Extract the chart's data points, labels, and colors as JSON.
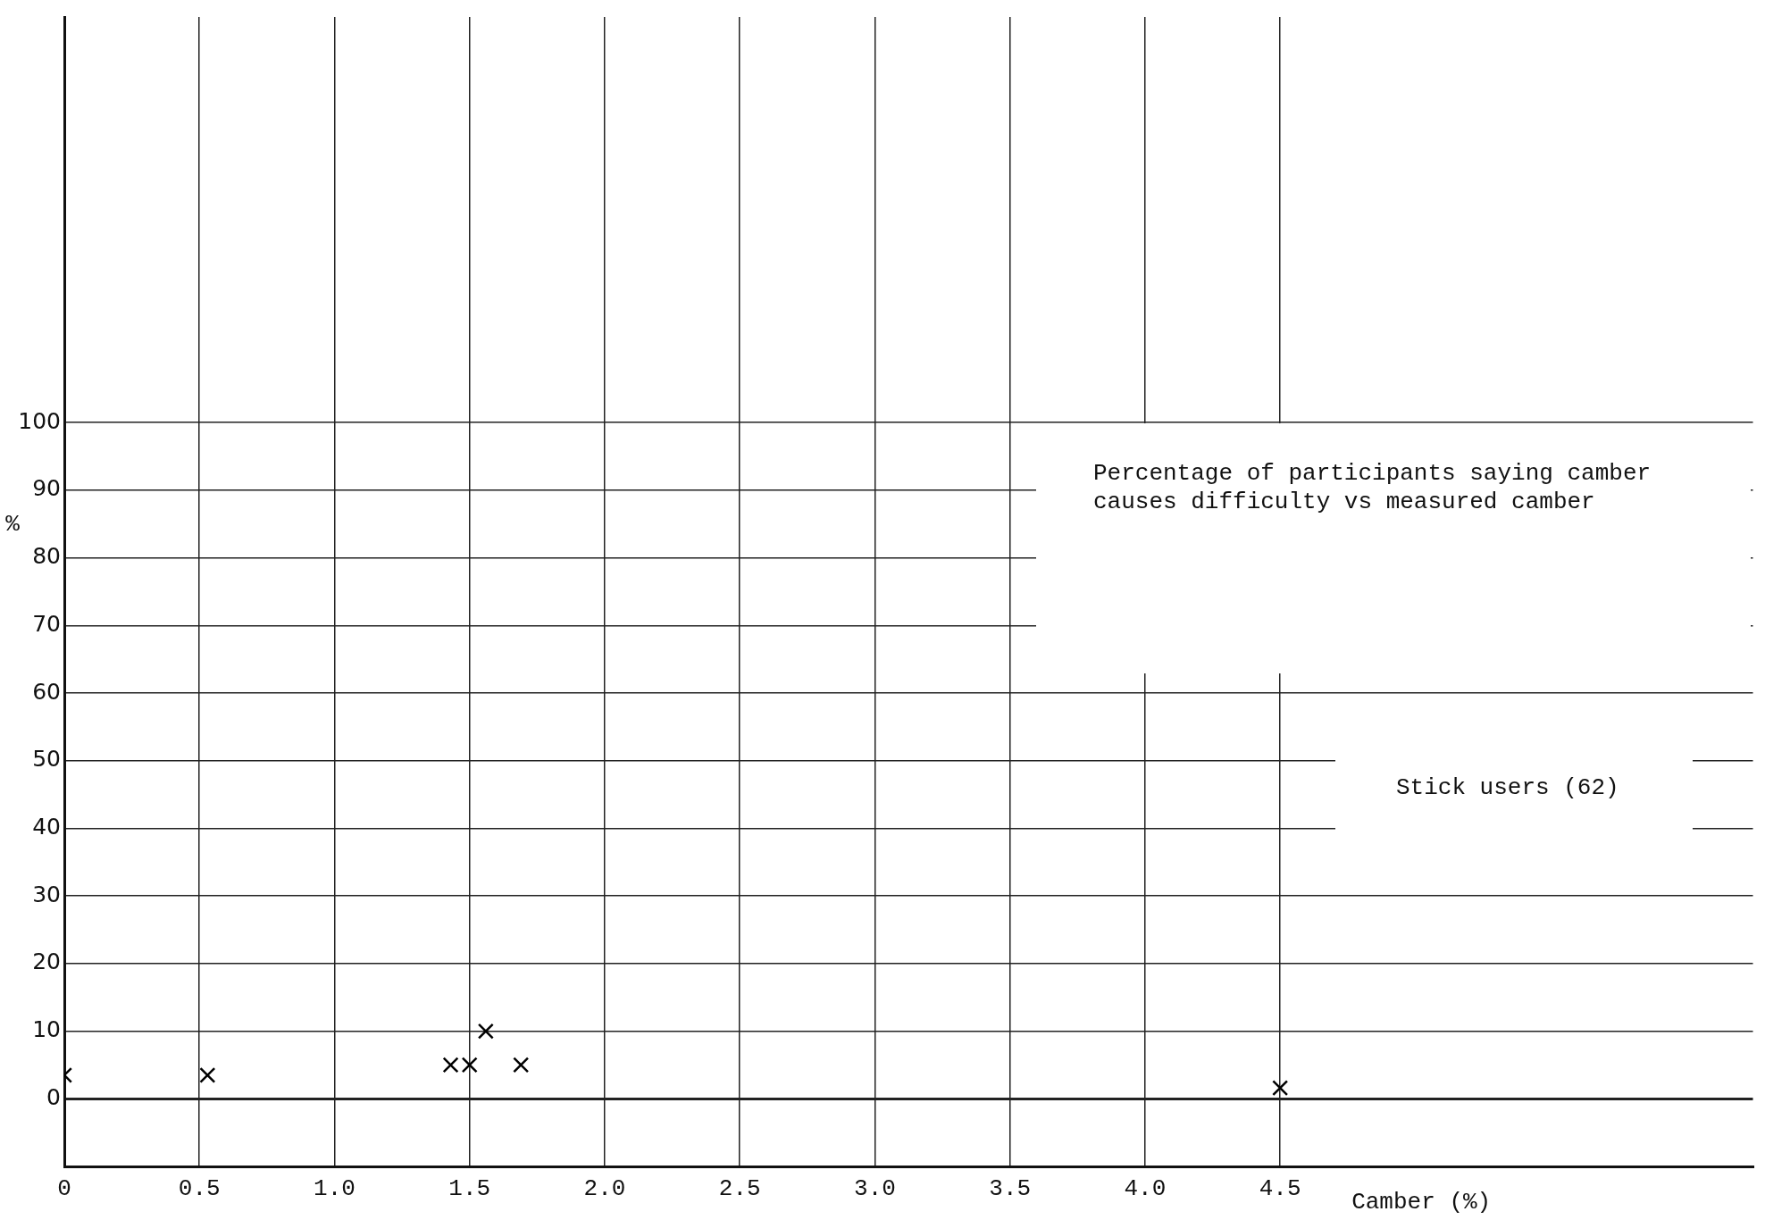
{
  "chart_data": {
    "type": "scatter",
    "title": "Percentage of participants saying camber causes difficulty vs measured camber",
    "subtitle": "Stick users (62)",
    "xlabel": "Camber (%)",
    "ylabel": "%",
    "series": [
      {
        "color": "#000000",
        "x": [
          0,
          0.53,
          1.43,
          1.5,
          1.56,
          1.69,
          4.5
        ],
        "values": [
          3.5,
          3.5,
          5,
          5,
          10,
          5,
          1.6
        ]
      }
    ],
    "xlim": [
      0,
      6.25
    ],
    "ylim": [
      -10,
      160
    ],
    "xticks": [
      0,
      0.5,
      {
        "value": 1,
        "label": "1.0"
      },
      1.5,
      {
        "value": 2,
        "label": "2.0"
      },
      2.5,
      {
        "value": 3,
        "label": "3.0"
      },
      3.5,
      {
        "value": 4,
        "label": "4.0"
      },
      4.5
    ],
    "yticks": [
      0,
      10,
      20,
      30,
      40,
      50,
      60,
      70,
      80,
      90,
      100
    ],
    "grid": true,
    "legend": false,
    "marker": "cross"
  }
}
